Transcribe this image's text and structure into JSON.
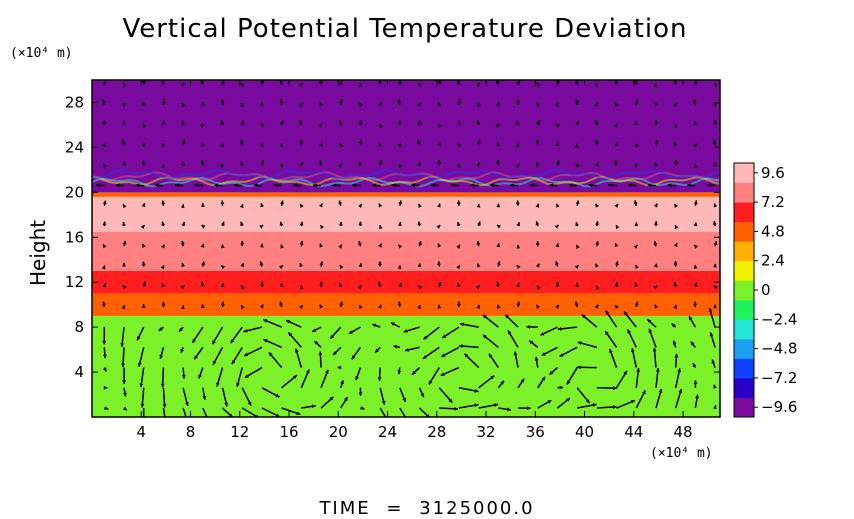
{
  "chart_data": {
    "type": "heatmap",
    "title": "Vertical Potential Temperature Deviation",
    "ylabel": "Height",
    "x_unit": "(×10⁴ m)",
    "y_unit": "(×10⁴ m)",
    "xlim": [
      0,
      51
    ],
    "ylim": [
      0,
      30
    ],
    "x_ticks": [
      4,
      8,
      12,
      16,
      20,
      24,
      28,
      32,
      36,
      40,
      44,
      48
    ],
    "y_ticks": [
      4,
      8,
      12,
      16,
      20,
      24,
      28
    ],
    "colorbar": {
      "min": -10.4,
      "max": 10.4,
      "ticks": [
        9.6,
        7.2,
        4.8,
        2.4,
        0,
        -2.4,
        -4.8,
        -7.2,
        -9.6
      ],
      "colors": [
        "#7a0a9e",
        "#2a00c8",
        "#1040ff",
        "#1ca0f0",
        "#24e6d8",
        "#20f060",
        "#7cf028",
        "#f0f000",
        "#ffb000",
        "#ff6000",
        "#ff1e1e",
        "#ff8080",
        "#ffb8b8"
      ]
    },
    "layers": [
      {
        "y_from": 0,
        "y_to": 9,
        "value": 0.6
      },
      {
        "y_from": 9,
        "y_to": 11,
        "value": 5.4
      },
      {
        "y_from": 11,
        "y_to": 13,
        "value": 6.8
      },
      {
        "y_from": 13,
        "y_to": 16.5,
        "value": 7.6
      },
      {
        "y_from": 16.5,
        "y_to": 19.6,
        "value": 9.6
      },
      {
        "y_from": 19.6,
        "y_to": 20,
        "value": 4.0
      },
      {
        "y_from": 20,
        "y_to": 30,
        "value": -10.0
      }
    ],
    "vortices": [
      {
        "x": 14,
        "y": 3.6,
        "r": 3.2
      },
      {
        "x": 30,
        "y": 3.6,
        "r": 3.0
      },
      {
        "x": 41,
        "y": 3.6,
        "r": 3.0
      }
    ],
    "time_label": "TIME",
    "time_eq": "=",
    "time_value": "3125000.0"
  }
}
